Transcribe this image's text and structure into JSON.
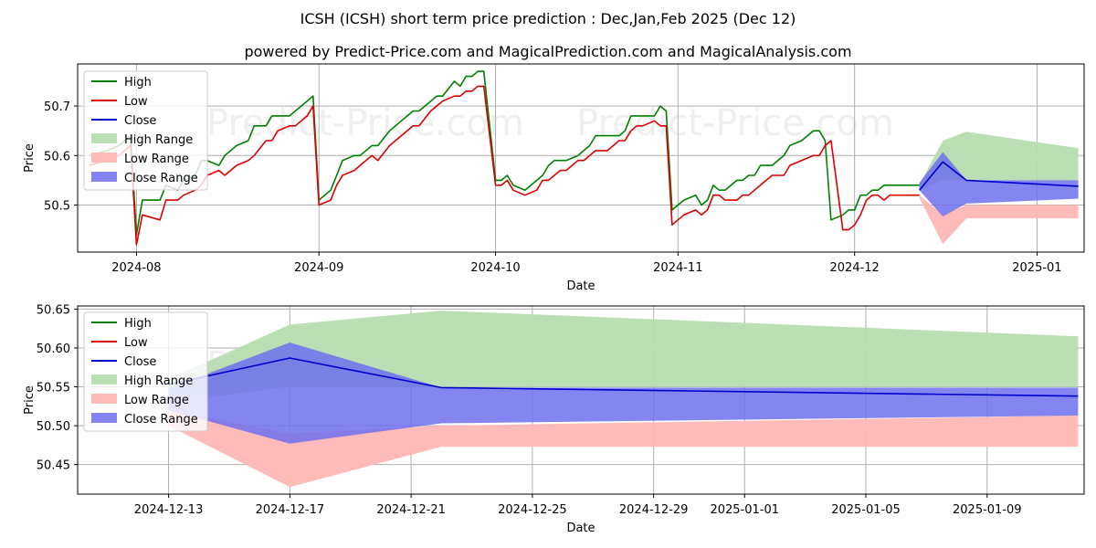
{
  "title_line1": "ICSH (ICSH) short term price prediction : Dec,Jan,Feb 2025 (Dec 12)",
  "title_line2": "powered by Predict-Price.com and MagicalPrediction.com and MagicalAnalysis.com",
  "watermark": "Predict-Price.com",
  "colors": {
    "high": "#008000",
    "low": "#dd0000",
    "close": "#0000cc",
    "high_range": "#b8dcb0",
    "low_range": "#ffb6b6",
    "close_range": "#7070ee",
    "grid": "#b0b0b0",
    "watermark": "#efefef"
  },
  "chart_data": [
    {
      "type": "line",
      "xlabel": "Date",
      "ylabel": "Price",
      "xlim_day": [
        -10,
        161
      ],
      "ylim": [
        50.405,
        50.785
      ],
      "xticks": [
        {
          "label": "2024-08",
          "day": 0
        },
        {
          "label": "2024-09",
          "day": 31
        },
        {
          "label": "2024-10",
          "day": 61
        },
        {
          "label": "2024-11",
          "day": 92
        },
        {
          "label": "2024-12",
          "day": 122
        },
        {
          "label": "2025-01",
          "day": 153
        }
      ],
      "yticks": [
        50.5,
        50.6,
        50.7
      ],
      "ytick_labels": [
        "50.5",
        "50.6",
        "50.7"
      ],
      "legend": [
        "High",
        "Low",
        "Close",
        "High Range",
        "Low Range",
        "Close Range"
      ],
      "legend_position": "upper-left",
      "series": [
        {
          "name": "High",
          "x": [
            -8,
            -5,
            -3,
            -1,
            0,
            1,
            4,
            5,
            7,
            8,
            10,
            11,
            12,
            14,
            15,
            17,
            19,
            20,
            22,
            23,
            24,
            26,
            27,
            29,
            30,
            31,
            33,
            34,
            35,
            37,
            38,
            40,
            41,
            43,
            44,
            45,
            47,
            48,
            50,
            51,
            52,
            54,
            55,
            56,
            57,
            58,
            59,
            61,
            62,
            63,
            64,
            66,
            68,
            69,
            70,
            71,
            72,
            73,
            75,
            76,
            77,
            78,
            79,
            80,
            82,
            83,
            84,
            85,
            86,
            88,
            89,
            90,
            91,
            92,
            93,
            95,
            96,
            97,
            98,
            99,
            100,
            102,
            103,
            104,
            105,
            106,
            108,
            110,
            111,
            113,
            115,
            116,
            117,
            118,
            120,
            121,
            122,
            123,
            124,
            125,
            126,
            127,
            128,
            129,
            130,
            131,
            132,
            133
          ],
          "y": [
            50.6,
            50.61,
            50.62,
            50.64,
            50.44,
            50.51,
            50.51,
            50.54,
            50.53,
            50.55,
            50.56,
            50.59,
            50.59,
            50.58,
            50.6,
            50.62,
            50.63,
            50.66,
            50.66,
            50.68,
            50.68,
            50.68,
            50.69,
            50.71,
            50.72,
            50.51,
            50.53,
            50.56,
            50.59,
            50.6,
            50.6,
            50.62,
            50.62,
            50.65,
            50.66,
            50.67,
            50.69,
            50.69,
            50.71,
            50.72,
            50.72,
            50.75,
            50.74,
            50.76,
            50.76,
            50.77,
            50.77,
            50.55,
            50.55,
            50.56,
            50.54,
            50.53,
            50.55,
            50.56,
            50.58,
            50.59,
            50.59,
            50.59,
            50.6,
            50.61,
            50.62,
            50.64,
            50.64,
            50.64,
            50.64,
            50.65,
            50.68,
            50.68,
            50.68,
            50.68,
            50.7,
            50.69,
            50.49,
            50.5,
            50.51,
            50.52,
            50.5,
            50.51,
            50.54,
            50.53,
            50.53,
            50.55,
            50.55,
            50.56,
            50.56,
            50.58,
            50.58,
            50.6,
            50.62,
            50.63,
            50.65,
            50.65,
            50.63,
            50.47,
            50.48,
            50.49,
            50.49,
            50.52,
            50.52,
            50.53,
            50.53,
            50.54,
            50.54,
            50.54,
            50.54,
            50.54,
            50.54,
            50.54
          ]
        },
        {
          "name": "Low",
          "x": [
            -8,
            -5,
            -3,
            -1,
            0,
            1,
            4,
            5,
            7,
            8,
            10,
            11,
            12,
            14,
            15,
            17,
            19,
            20,
            22,
            23,
            24,
            26,
            27,
            29,
            30,
            31,
            33,
            34,
            35,
            37,
            38,
            40,
            41,
            43,
            44,
            45,
            47,
            48,
            50,
            51,
            52,
            54,
            55,
            56,
            57,
            58,
            59,
            61,
            62,
            63,
            64,
            66,
            68,
            69,
            70,
            71,
            72,
            73,
            75,
            76,
            77,
            78,
            79,
            80,
            82,
            83,
            84,
            85,
            86,
            88,
            89,
            90,
            91,
            92,
            93,
            95,
            96,
            97,
            98,
            99,
            100,
            102,
            103,
            104,
            105,
            106,
            108,
            110,
            111,
            113,
            115,
            116,
            117,
            118,
            120,
            121,
            122,
            123,
            124,
            125,
            126,
            127,
            128,
            129,
            130,
            131,
            132,
            133
          ],
          "y": [
            50.58,
            50.59,
            50.6,
            50.62,
            50.42,
            50.48,
            50.47,
            50.51,
            50.51,
            50.52,
            50.53,
            50.54,
            50.56,
            50.57,
            50.56,
            50.58,
            50.59,
            50.6,
            50.63,
            50.63,
            50.65,
            50.66,
            50.66,
            50.68,
            50.7,
            50.5,
            50.51,
            50.54,
            50.56,
            50.57,
            50.58,
            50.6,
            50.59,
            50.62,
            50.63,
            50.64,
            50.66,
            50.66,
            50.69,
            50.7,
            50.71,
            50.72,
            50.72,
            50.73,
            50.73,
            50.74,
            50.74,
            50.54,
            50.54,
            50.55,
            50.53,
            50.52,
            50.53,
            50.55,
            50.55,
            50.56,
            50.57,
            50.57,
            50.59,
            50.59,
            50.6,
            50.61,
            50.61,
            50.61,
            50.63,
            50.63,
            50.65,
            50.66,
            50.66,
            50.67,
            50.66,
            50.66,
            50.46,
            50.47,
            50.48,
            50.49,
            50.48,
            50.49,
            50.52,
            50.52,
            50.51,
            50.51,
            50.52,
            50.52,
            50.53,
            50.54,
            50.56,
            50.56,
            50.58,
            50.59,
            50.6,
            50.6,
            50.62,
            50.63,
            50.45,
            50.45,
            50.46,
            50.48,
            50.51,
            50.52,
            50.52,
            50.51,
            50.52,
            50.52,
            50.52,
            50.52,
            50.52,
            50.52
          ]
        },
        {
          "name": "Close",
          "x": [
            133,
            137,
            141,
            160
          ],
          "y": [
            50.53,
            50.587,
            50.55,
            50.538
          ]
        }
      ],
      "ranges": [
        {
          "name": "High Range",
          "x": [
            133,
            137,
            141,
            160
          ],
          "upper": [
            50.541,
            50.63,
            50.648,
            50.615
          ],
          "lower": [
            50.53,
            50.55,
            50.55,
            50.55
          ]
        },
        {
          "name": "Low Range",
          "x": [
            133,
            137,
            141,
            160
          ],
          "upper": [
            50.52,
            50.48,
            50.5,
            50.5
          ],
          "lower": [
            50.515,
            50.421,
            50.473,
            50.473
          ]
        },
        {
          "name": "Close Range",
          "x": [
            133,
            137,
            141,
            160
          ],
          "upper": [
            50.545,
            50.607,
            50.55,
            50.55
          ],
          "lower": [
            50.53,
            50.477,
            50.503,
            50.513
          ]
        }
      ]
    },
    {
      "type": "line",
      "xlabel": "Date",
      "ylabel": "Price",
      "xlim_day": [
        130.0,
        163.2
      ],
      "ylim": [
        50.412,
        50.654
      ],
      "xticks": [
        {
          "label": "2024-12-13",
          "day": 133
        },
        {
          "label": "2024-12-17",
          "day": 137
        },
        {
          "label": "2024-12-21",
          "day": 141
        },
        {
          "label": "2024-12-25",
          "day": 145
        },
        {
          "label": "2024-12-29",
          "day": 149
        },
        {
          "label": "2025-01-01",
          "day": 152
        },
        {
          "label": "2025-01-05",
          "day": 156
        },
        {
          "label": "2025-01-09",
          "day": 160
        }
      ],
      "yticks": [
        50.45,
        50.5,
        50.55,
        50.6,
        50.65
      ],
      "ytick_labels": [
        "50.45",
        "50.50",
        "50.55",
        "50.60",
        "50.65"
      ],
      "legend": [
        "High",
        "Low",
        "Close",
        "High Range",
        "Low Range",
        "Close Range"
      ],
      "legend_position": "upper-left",
      "series": [
        {
          "name": "High",
          "x": [],
          "y": []
        },
        {
          "name": "Low",
          "x": [],
          "y": []
        },
        {
          "name": "Close",
          "x": [
            133,
            137,
            142,
            163
          ],
          "y": [
            50.553,
            50.587,
            50.549,
            50.538
          ]
        }
      ],
      "ranges": [
        {
          "name": "High Range",
          "x": [
            133,
            137,
            142,
            163
          ],
          "upper": [
            50.56,
            50.63,
            50.648,
            50.615
          ],
          "lower": [
            50.53,
            50.55,
            50.55,
            50.55
          ]
        },
        {
          "name": "Low Range",
          "x": [
            133,
            137,
            142,
            163
          ],
          "upper": [
            50.52,
            50.49,
            50.5,
            50.513
          ],
          "lower": [
            50.5,
            50.421,
            50.473,
            50.473
          ]
        },
        {
          "name": "Close Range",
          "x": [
            133,
            137,
            142,
            163
          ],
          "upper": [
            50.548,
            50.607,
            50.549,
            50.549
          ],
          "lower": [
            50.52,
            50.477,
            50.503,
            50.513
          ]
        }
      ]
    }
  ]
}
